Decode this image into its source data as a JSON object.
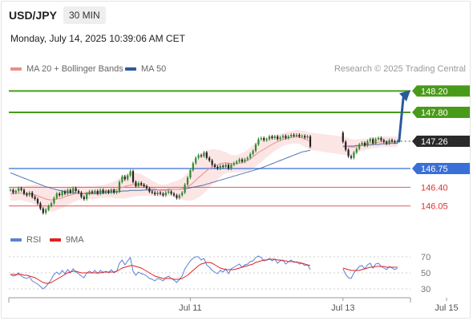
{
  "header": {
    "symbol": "USD/JPY",
    "timeframe": "30 MIN",
    "datetime": "Monday, July 14, 2025 10:39:06 AM CET"
  },
  "legend": {
    "bollinger": "MA 20 + Bollinger Bands",
    "ma50": "MA 50",
    "copyright": "Research © 2025 Trading Central",
    "rsi": "RSI",
    "rsi_ma": "9MA"
  },
  "colors": {
    "up_candle": "#2e8b2e",
    "down_candle": "#222222",
    "bollinger": "#f08c8c",
    "bollinger_fill": "#fbe0e0",
    "ma50": "#2f5a9c",
    "resistance": "#4a9a1a",
    "support": "#e85a5a",
    "pivot": "#3a6fd8",
    "arrow": "#2a5a9c",
    "rsi": "#5a82d6",
    "rsi_ma": "#e02020"
  },
  "chart_data": [
    {
      "type": "candlestick",
      "title": "USD/JPY",
      "ylim": [
        145.85,
        148.4
      ],
      "x_ticks": [
        {
          "label": "Jul 11",
          "index": 66
        },
        {
          "label": "Jul 13",
          "index": 122
        },
        {
          "label": "Jul 15",
          "index": 160
        }
      ],
      "projection": {
        "from": 147.26,
        "to": 148.2
      },
      "levels": [
        {
          "label": "148.20",
          "value": 148.2,
          "kind": "resistance"
        },
        {
          "label": "147.80",
          "value": 147.8,
          "kind": "resistance"
        },
        {
          "label": "147.26",
          "value": 147.26,
          "kind": "current"
        },
        {
          "label": "146.75",
          "value": 146.75,
          "kind": "pivot"
        },
        {
          "label": "146.40",
          "value": 146.4,
          "kind": "support"
        },
        {
          "label": "146.05",
          "value": 146.05,
          "kind": "support"
        }
      ],
      "closes": [
        146.35,
        146.3,
        146.33,
        146.38,
        146.35,
        146.28,
        146.25,
        146.3,
        146.22,
        146.18,
        146.1,
        146.0,
        145.92,
        145.98,
        146.05,
        146.1,
        146.2,
        146.28,
        146.25,
        146.32,
        146.28,
        146.35,
        146.3,
        146.38,
        146.33,
        146.3,
        146.22,
        146.18,
        146.28,
        146.32,
        146.3,
        146.33,
        146.28,
        146.35,
        146.3,
        146.33,
        146.3,
        146.35,
        146.3,
        146.32,
        146.5,
        146.6,
        146.55,
        146.62,
        146.7,
        146.5,
        146.42,
        146.48,
        146.45,
        146.42,
        146.38,
        146.32,
        146.3,
        146.27,
        146.3,
        146.28,
        146.25,
        146.3,
        146.32,
        146.28,
        146.25,
        146.2,
        146.25,
        146.3,
        146.45,
        146.58,
        146.72,
        146.85,
        146.95,
        147.0,
        146.98,
        147.05,
        146.95,
        146.9,
        146.82,
        146.78,
        146.75,
        146.8,
        146.78,
        146.82,
        146.75,
        146.82,
        146.85,
        146.88,
        146.92,
        146.88,
        146.92,
        146.95,
        147.02,
        147.08,
        147.2,
        147.3,
        147.32,
        147.28,
        147.3,
        147.35,
        147.32,
        147.35,
        147.3,
        147.33,
        147.36,
        147.32,
        147.35,
        147.38,
        147.36,
        147.38,
        147.35,
        147.36,
        147.33,
        147.35,
        147.16,
        147.15,
        147.17,
        147.16,
        147.18,
        147.17,
        147.18,
        147.2,
        147.2,
        147.22,
        147.25,
        147.42,
        147.25,
        147.1,
        146.98,
        146.95,
        147.05,
        147.12,
        147.2,
        147.23,
        147.18,
        147.26,
        147.3,
        147.22,
        147.3,
        147.32,
        147.28,
        147.25,
        147.22,
        147.28,
        147.26,
        147.24,
        147.26
      ],
      "ma20": [
        146.28,
        146.28,
        146.28,
        146.29,
        146.29,
        146.28,
        146.28,
        146.28,
        146.27,
        146.26,
        146.24,
        146.22,
        146.2,
        146.18,
        146.17,
        146.16,
        146.17,
        146.18,
        146.19,
        146.2,
        146.22,
        146.24,
        146.25,
        146.27,
        146.28,
        146.29,
        146.29,
        146.29,
        146.3,
        146.3,
        146.3,
        146.3,
        146.31,
        146.32,
        146.32,
        146.33,
        146.34,
        146.35,
        146.35,
        146.36,
        146.38,
        146.4,
        146.41,
        146.43,
        146.44,
        146.45,
        146.45,
        146.45,
        146.44,
        146.43,
        146.41,
        146.4,
        146.38,
        146.37,
        146.35,
        146.34,
        146.34,
        146.34,
        146.35,
        146.36,
        146.36,
        146.36,
        146.36,
        146.37,
        146.39,
        146.41,
        146.44,
        146.48,
        146.53,
        146.58,
        146.62,
        146.67,
        146.71,
        146.75,
        146.78,
        146.8,
        146.82,
        146.84,
        146.85,
        146.86,
        146.85,
        146.84,
        146.84,
        146.84,
        146.85,
        146.86,
        146.88,
        146.9,
        146.93,
        146.97,
        147.01,
        147.05,
        147.08,
        147.11,
        147.14,
        147.17,
        147.2,
        147.23,
        147.25,
        147.27,
        147.29,
        147.31,
        147.32,
        147.33,
        147.34,
        147.35,
        147.34,
        147.32,
        147.3,
        147.28,
        147.26,
        147.25,
        147.24,
        147.23,
        147.22,
        147.21,
        147.2,
        147.2,
        147.19,
        147.19,
        147.19,
        147.19,
        147.18,
        147.17,
        147.16,
        147.15,
        147.15,
        147.16,
        147.18,
        147.19,
        147.2,
        147.21,
        147.22,
        147.23,
        147.23,
        147.24,
        147.25,
        147.25,
        147.25,
        147.25,
        147.25,
        147.25,
        147.25
      ],
      "ma50": [
        146.67,
        146.65,
        146.63,
        146.61,
        146.59,
        146.57,
        146.55,
        146.53,
        146.51,
        146.49,
        146.47,
        146.45,
        146.43,
        146.41,
        146.4,
        146.38,
        146.37,
        146.35,
        146.34,
        146.33,
        146.32,
        146.31,
        146.3,
        146.3,
        146.29,
        146.29,
        146.28,
        146.28,
        146.28,
        146.28,
        146.28,
        146.28,
        146.28,
        146.29,
        146.29,
        146.3,
        146.3,
        146.31,
        146.31,
        146.32,
        146.32,
        146.33,
        146.33,
        146.33,
        146.34,
        146.34,
        146.34,
        146.34,
        146.34,
        146.35,
        146.35,
        146.35,
        146.35,
        146.35,
        146.35,
        146.35,
        146.35,
        146.35,
        146.36,
        146.36,
        146.36,
        146.36,
        146.36,
        146.37,
        146.37,
        146.38,
        146.39,
        146.4,
        146.41,
        146.42,
        146.43,
        146.44,
        146.46,
        146.47,
        146.49,
        146.5,
        146.52,
        146.53,
        146.55,
        146.56,
        146.58,
        146.59,
        146.61,
        146.62,
        146.64,
        146.65,
        146.67,
        146.68,
        146.7,
        146.71,
        146.73,
        146.74,
        146.76,
        146.78,
        146.8,
        146.82,
        146.84,
        146.86,
        146.88,
        146.9,
        146.92,
        146.94,
        146.96,
        146.98,
        147.0,
        147.02,
        147.04,
        147.06,
        147.07,
        147.08,
        147.09,
        147.1,
        147.11,
        147.11,
        147.12,
        147.13,
        147.13,
        147.14,
        147.14,
        147.15,
        147.15,
        147.16,
        147.16,
        147.16,
        147.17,
        147.17,
        147.17,
        147.18,
        147.18,
        147.18,
        147.19,
        147.19,
        147.19,
        147.2,
        147.2,
        147.2,
        147.21,
        147.21,
        147.21,
        147.22,
        147.22,
        147.22,
        147.23
      ],
      "band_width": [
        0.13,
        0.13,
        0.13,
        0.13,
        0.13,
        0.14,
        0.15,
        0.16,
        0.17,
        0.19,
        0.2,
        0.21,
        0.22,
        0.22,
        0.22,
        0.22,
        0.22,
        0.21,
        0.2,
        0.19,
        0.18,
        0.17,
        0.16,
        0.15,
        0.14,
        0.13,
        0.13,
        0.12,
        0.12,
        0.12,
        0.12,
        0.12,
        0.12,
        0.12,
        0.12,
        0.12,
        0.13,
        0.14,
        0.16,
        0.17,
        0.19,
        0.21,
        0.22,
        0.23,
        0.23,
        0.23,
        0.22,
        0.21,
        0.2,
        0.19,
        0.17,
        0.16,
        0.14,
        0.13,
        0.12,
        0.11,
        0.11,
        0.11,
        0.12,
        0.13,
        0.14,
        0.16,
        0.18,
        0.2,
        0.23,
        0.26,
        0.29,
        0.32,
        0.35,
        0.37,
        0.38,
        0.38,
        0.37,
        0.35,
        0.33,
        0.31,
        0.28,
        0.25,
        0.22,
        0.2,
        0.18,
        0.17,
        0.16,
        0.16,
        0.17,
        0.18,
        0.19,
        0.2,
        0.21,
        0.22,
        0.22,
        0.22,
        0.21,
        0.2,
        0.18,
        0.17,
        0.16,
        0.15,
        0.14,
        0.13,
        0.12,
        0.12,
        0.12,
        0.12,
        0.12,
        0.13,
        0.13,
        0.14,
        0.15,
        0.15,
        0.16,
        0.17,
        0.17,
        0.18,
        0.18,
        0.18,
        0.18,
        0.18,
        0.18,
        0.18,
        0.18,
        0.18,
        0.17,
        0.17,
        0.16,
        0.15,
        0.14,
        0.13,
        0.12,
        0.11,
        0.11,
        0.1,
        0.1,
        0.1,
        0.1,
        0.1,
        0.1,
        0.1,
        0.1,
        0.1,
        0.1,
        0.1,
        0.1
      ],
      "gap_start": 110,
      "gap_end": 122
    },
    {
      "type": "line",
      "title": "RSI",
      "ylim": [
        25,
        75
      ],
      "y_ticks": [
        70,
        50,
        30
      ],
      "series": [
        {
          "name": "RSI",
          "values": [
            48,
            46,
            47,
            50,
            46,
            44,
            43,
            45,
            40,
            38,
            36,
            33,
            30,
            33,
            37,
            42,
            48,
            51,
            48,
            53,
            49,
            54,
            50,
            55,
            51,
            49,
            46,
            44,
            50,
            52,
            50,
            53,
            49,
            53,
            50,
            52,
            50,
            54,
            50,
            52,
            62,
            66,
            60,
            65,
            69,
            52,
            47,
            51,
            49,
            48,
            46,
            43,
            42,
            40,
            43,
            42,
            40,
            44,
            46,
            43,
            41,
            38,
            42,
            46,
            55,
            60,
            65,
            68,
            70,
            70,
            66,
            68,
            60,
            57,
            53,
            51,
            49,
            53,
            51,
            55,
            49,
            55,
            57,
            59,
            61,
            57,
            60,
            61,
            64,
            65,
            69,
            71,
            69,
            65,
            66,
            68,
            65,
            67,
            62,
            65,
            66,
            61,
            64,
            66,
            63,
            64,
            61,
            62,
            59,
            60,
            54,
            53,
            55,
            54,
            56,
            55,
            56,
            57,
            56,
            58,
            59,
            67,
            55,
            48,
            44,
            43,
            50,
            54,
            58,
            59,
            55,
            60,
            62,
            56,
            61,
            62,
            58,
            56,
            54,
            58,
            56,
            54,
            56
          ]
        },
        {
          "name": "9MA",
          "values": [
            48,
            48,
            48,
            48,
            48,
            47,
            47,
            46,
            45,
            44,
            42,
            40,
            38,
            37,
            37,
            38,
            40,
            42,
            44,
            46,
            48,
            50,
            51,
            52,
            52,
            51,
            50,
            50,
            50,
            50,
            50,
            50,
            50,
            50,
            51,
            51,
            51,
            51,
            51,
            52,
            54,
            56,
            57,
            58,
            59,
            59,
            58,
            57,
            56,
            54,
            52,
            50,
            48,
            46,
            45,
            44,
            43,
            43,
            43,
            43,
            42,
            42,
            42,
            43,
            45,
            47,
            50,
            53,
            56,
            59,
            61,
            62,
            63,
            63,
            62,
            60,
            58,
            56,
            55,
            54,
            54,
            54,
            54,
            55,
            56,
            57,
            58,
            59,
            60,
            61,
            63,
            64,
            65,
            66,
            66,
            67,
            67,
            67,
            66,
            66,
            65,
            65,
            64,
            64,
            64,
            63,
            63,
            62,
            61,
            60,
            59,
            58,
            57,
            56,
            56,
            55,
            55,
            55,
            55,
            55,
            56,
            57,
            56,
            55,
            54,
            53,
            53,
            53,
            53,
            54,
            55,
            56,
            57,
            57,
            58,
            58,
            58,
            58,
            57,
            57,
            57,
            57,
            57
          ]
        }
      ]
    }
  ]
}
